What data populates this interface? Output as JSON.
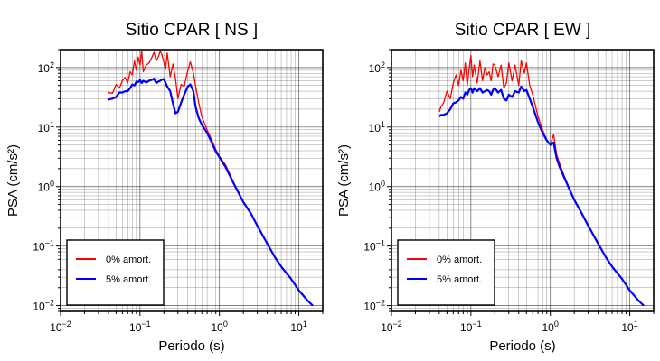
{
  "figure": {
    "legend_labels": [
      "0% amort.",
      "5% amort."
    ]
  },
  "chart_data": [
    {
      "type": "line",
      "title": "Sitio CPAR [ NS ]",
      "xlabel": "Periodo (s)",
      "ylabel": "PSA (cm/s²)",
      "xscale": "log",
      "yscale": "log",
      "xlim": [
        0.01,
        20
      ],
      "ylim": [
        0.008,
        200
      ],
      "xticks": [
        0.01,
        0.1,
        1,
        10
      ],
      "yticks": [
        0.01,
        0.1,
        1,
        10,
        100
      ],
      "grid": true,
      "legend": "bottom-left",
      "series": [
        {
          "name": "0% amort.",
          "color": "#ff0000",
          "x": [
            0.04,
            0.045,
            0.05,
            0.055,
            0.06,
            0.065,
            0.07,
            0.075,
            0.08,
            0.085,
            0.09,
            0.095,
            0.1,
            0.105,
            0.11,
            0.12,
            0.13,
            0.14,
            0.15,
            0.16,
            0.17,
            0.18,
            0.19,
            0.2,
            0.21,
            0.22,
            0.24,
            0.26,
            0.28,
            0.3,
            0.33,
            0.36,
            0.4,
            0.43,
            0.47,
            0.5,
            0.55,
            0.6,
            0.7,
            0.8,
            0.9,
            1.0,
            1.2,
            1.5,
            2.0,
            2.5,
            3.0,
            4.0,
            5.0,
            6.0,
            8.0,
            10.0,
            13.0,
            15.0
          ],
          "values": [
            38,
            37,
            52,
            45,
            60,
            68,
            55,
            85,
            75,
            130,
            90,
            150,
            110,
            190,
            85,
            110,
            120,
            145,
            180,
            130,
            150,
            190,
            160,
            120,
            95,
            175,
            70,
            115,
            65,
            30,
            52,
            48,
            90,
            125,
            80,
            50,
            25,
            15,
            9,
            6,
            4.2,
            3.2,
            2.3,
            1.2,
            0.55,
            0.35,
            0.22,
            0.11,
            0.065,
            0.045,
            0.028,
            0.018,
            0.012,
            0.01
          ]
        },
        {
          "name": "5% amort.",
          "color": "#0000ff",
          "x": [
            0.04,
            0.045,
            0.05,
            0.055,
            0.06,
            0.065,
            0.07,
            0.075,
            0.08,
            0.085,
            0.09,
            0.095,
            0.1,
            0.105,
            0.11,
            0.12,
            0.13,
            0.14,
            0.15,
            0.16,
            0.17,
            0.18,
            0.19,
            0.2,
            0.21,
            0.22,
            0.24,
            0.26,
            0.28,
            0.3,
            0.33,
            0.36,
            0.4,
            0.43,
            0.47,
            0.5,
            0.55,
            0.6,
            0.7,
            0.8,
            0.9,
            1.0,
            1.2,
            1.5,
            2.0,
            2.5,
            3.0,
            4.0,
            5.0,
            6.0,
            8.0,
            10.0,
            13.0,
            15.0
          ],
          "values": [
            29,
            30,
            32,
            38,
            38,
            40,
            40,
            45,
            52,
            50,
            58,
            57,
            62,
            55,
            60,
            56,
            60,
            62,
            65,
            55,
            58,
            60,
            63,
            64,
            55,
            48,
            40,
            25,
            17,
            18,
            26,
            35,
            48,
            52,
            40,
            22,
            14,
            11,
            8,
            5.5,
            3.9,
            3.1,
            2.1,
            1.15,
            0.55,
            0.35,
            0.22,
            0.11,
            0.065,
            0.045,
            0.028,
            0.018,
            0.012,
            0.01
          ]
        }
      ]
    },
    {
      "type": "line",
      "title": "Sitio CPAR [ EW ]",
      "xlabel": "Periodo (s)",
      "ylabel": "PSA (cm/s²)",
      "xscale": "log",
      "yscale": "log",
      "xlim": [
        0.01,
        20
      ],
      "ylim": [
        0.008,
        200
      ],
      "xticks": [
        0.01,
        0.1,
        1,
        10
      ],
      "yticks": [
        0.01,
        0.1,
        1,
        10,
        100
      ],
      "grid": true,
      "legend": "bottom-left",
      "series": [
        {
          "name": "0% amort.",
          "color": "#ff0000",
          "x": [
            0.04,
            0.042,
            0.045,
            0.05,
            0.055,
            0.06,
            0.065,
            0.07,
            0.075,
            0.08,
            0.085,
            0.09,
            0.095,
            0.1,
            0.105,
            0.11,
            0.12,
            0.13,
            0.14,
            0.15,
            0.16,
            0.17,
            0.18,
            0.19,
            0.2,
            0.22,
            0.24,
            0.26,
            0.28,
            0.3,
            0.33,
            0.36,
            0.4,
            0.43,
            0.47,
            0.5,
            0.55,
            0.6,
            0.7,
            0.8,
            0.9,
            1.0,
            1.1,
            1.2,
            1.3,
            1.5,
            2.0,
            2.5,
            3.0,
            4.0,
            5.0,
            6.0,
            8.0,
            10.0,
            13.0,
            15.0
          ],
          "values": [
            18,
            22,
            25,
            40,
            30,
            55,
            75,
            50,
            90,
            60,
            120,
            50,
            95,
            160,
            70,
            110,
            55,
            130,
            60,
            100,
            75,
            85,
            60,
            115,
            110,
            70,
            110,
            45,
            55,
            120,
            60,
            110,
            50,
            130,
            80,
            120,
            50,
            35,
            15,
            9,
            6,
            5,
            7.5,
            3.5,
            2.5,
            1.5,
            0.6,
            0.35,
            0.22,
            0.11,
            0.065,
            0.045,
            0.028,
            0.018,
            0.012,
            0.01
          ]
        },
        {
          "name": "5% amort.",
          "color": "#0000ff",
          "x": [
            0.04,
            0.042,
            0.045,
            0.05,
            0.055,
            0.06,
            0.065,
            0.07,
            0.075,
            0.08,
            0.085,
            0.09,
            0.095,
            0.1,
            0.105,
            0.11,
            0.12,
            0.13,
            0.14,
            0.15,
            0.16,
            0.17,
            0.18,
            0.19,
            0.2,
            0.22,
            0.24,
            0.26,
            0.28,
            0.3,
            0.33,
            0.36,
            0.4,
            0.43,
            0.47,
            0.5,
            0.55,
            0.6,
            0.7,
            0.8,
            0.9,
            1.0,
            1.1,
            1.2,
            1.3,
            1.5,
            2.0,
            2.5,
            3.0,
            4.0,
            5.0,
            6.0,
            8.0,
            10.0,
            13.0,
            15.0
          ],
          "values": [
            15,
            16,
            16,
            17,
            20,
            25,
            26,
            28,
            32,
            30,
            38,
            35,
            42,
            45,
            38,
            45,
            40,
            45,
            38,
            40,
            42,
            40,
            35,
            42,
            45,
            38,
            42,
            30,
            28,
            35,
            32,
            40,
            38,
            48,
            40,
            42,
            30,
            22,
            12,
            8,
            6,
            5,
            5.5,
            3,
            2.2,
            1.4,
            0.6,
            0.35,
            0.22,
            0.11,
            0.065,
            0.045,
            0.028,
            0.018,
            0.012,
            0.01
          ]
        }
      ]
    }
  ]
}
